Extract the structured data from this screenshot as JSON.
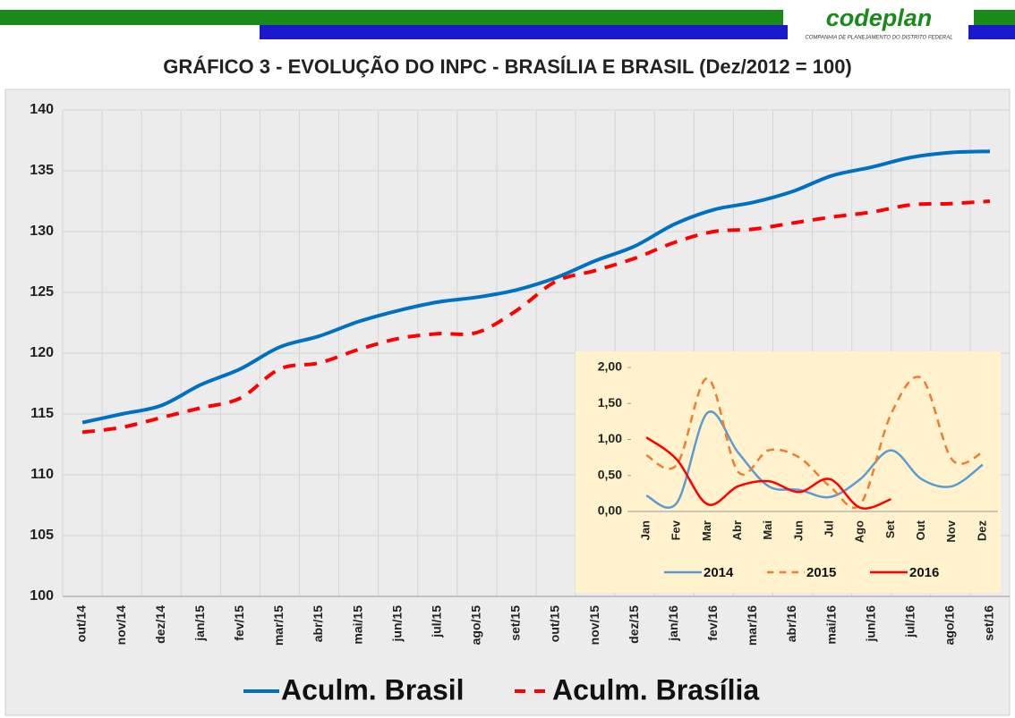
{
  "header": {
    "logo": "codeplan",
    "tagline": "COMPANHIA DE PLANEJAMENTO DO DISTRITO FEDERAL"
  },
  "chart_data": [
    {
      "type": "line",
      "title": "GRÁFICO 3 - EVOLUÇÃO DO INPC - BRASÍLIA E BRASIL (Dez/2012 = 100)",
      "categories": [
        "out/14",
        "nov/14",
        "dez/14",
        "jan/15",
        "fev/15",
        "mar/15",
        "abr/15",
        "mai/15",
        "jun/15",
        "jul/15",
        "ago/15",
        "set/15",
        "out/15",
        "nov/15",
        "dez/15",
        "jan/16",
        "fev/16",
        "mar/16",
        "abr/16",
        "mai/16",
        "jun/16",
        "jul/16",
        "ago/16",
        "set/16"
      ],
      "series": [
        {
          "name": "Aculm. Brasil",
          "color": "#0070c0",
          "dashed": false,
          "values": [
            114.3,
            115.0,
            115.7,
            117.4,
            118.7,
            120.5,
            121.4,
            122.6,
            123.5,
            124.2,
            124.6,
            125.2,
            126.2,
            127.6,
            128.8,
            130.6,
            131.8,
            132.4,
            133.3,
            134.6,
            135.3,
            136.1,
            136.5,
            136.6
          ]
        },
        {
          "name": "Aculm. Brasília",
          "color": "#ff0000",
          "dashed": true,
          "values": [
            113.5,
            113.9,
            114.7,
            115.5,
            116.3,
            118.7,
            119.2,
            120.3,
            121.2,
            121.6,
            121.7,
            123.5,
            125.9,
            126.8,
            127.8,
            129.1,
            130.0,
            130.2,
            130.7,
            131.2,
            131.6,
            132.2,
            132.3,
            132.5
          ]
        }
      ],
      "ylim": [
        100,
        140
      ],
      "yticks": [
        100,
        105,
        110,
        115,
        120,
        125,
        130,
        135,
        140
      ],
      "grid": true,
      "legend": "bottom"
    },
    {
      "type": "line",
      "categories": [
        "Jan",
        "Fev",
        "Mar",
        "Abr",
        "Mai",
        "Jun",
        "Jul",
        "Ago",
        "Set",
        "Out",
        "Nov",
        "Dez"
      ],
      "series": [
        {
          "name": "2014",
          "color": "#5b9bd5",
          "dashed": false,
          "values": [
            0.22,
            0.12,
            1.37,
            0.82,
            0.35,
            0.3,
            0.2,
            0.45,
            0.85,
            0.45,
            0.35,
            0.65
          ]
        },
        {
          "name": "2015",
          "color": "#ed7d31",
          "dashed": true,
          "values": [
            0.78,
            0.65,
            1.85,
            0.55,
            0.85,
            0.75,
            0.35,
            0.1,
            1.35,
            1.85,
            0.72,
            0.82
          ]
        },
        {
          "name": "2016",
          "color": "#ff0000",
          "dashed": false,
          "values": [
            1.03,
            0.72,
            0.1,
            0.35,
            0.42,
            0.27,
            0.45,
            0.05,
            0.17,
            null,
            null,
            null
          ]
        }
      ],
      "ylim": [
        0,
        2
      ],
      "yticks": [
        {
          "value": 0,
          "label": "0,00"
        },
        {
          "value": 0.5,
          "label": "0,50"
        },
        {
          "value": 1,
          "label": "1,00"
        },
        {
          "value": 1.5,
          "label": "1,50"
        },
        {
          "value": 2,
          "label": "2,00"
        }
      ],
      "grid": false,
      "legend": "bottom"
    }
  ]
}
